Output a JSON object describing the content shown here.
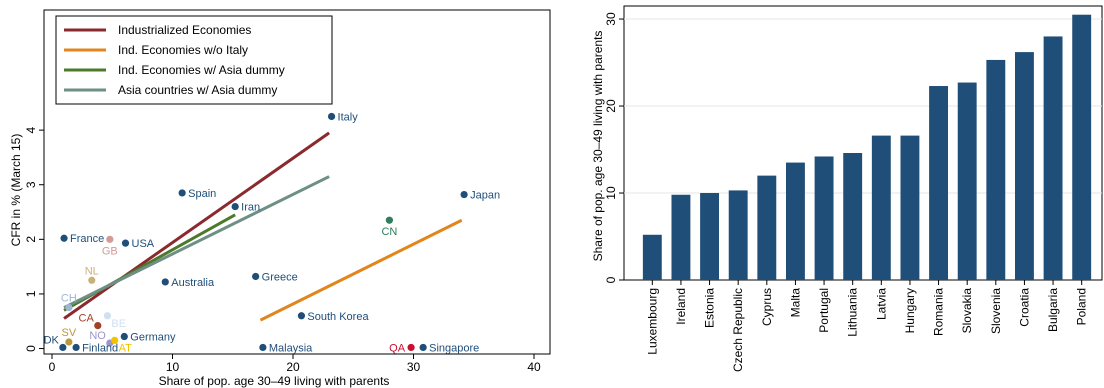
{
  "chart_data": [
    {
      "type": "scatter",
      "xlabel": "Share of pop. age 30–49 living with parents",
      "ylabel": "CFR in % (March 15)",
      "xlim": [
        0,
        40
      ],
      "ylim": [
        -0.1,
        6.2
      ],
      "xticks": [
        0,
        10,
        20,
        30,
        40
      ],
      "yticks": [
        0,
        1,
        2,
        3,
        4
      ],
      "grid": false,
      "legend_position": "top-left",
      "legend": [
        {
          "label": "Industrialized Economies",
          "color": "#8b2a2e"
        },
        {
          "label": "Ind. Economies w/o Italy",
          "color": "#e0861c"
        },
        {
          "label": "Ind. Economies w/ Asia dummy",
          "color": "#4c7a2b"
        },
        {
          "label": "Asia countries w/ Asia dummy",
          "color": "#6e8f85"
        }
      ],
      "fit_lines": [
        {
          "name": "Industrialized Economies",
          "color": "#8b2a2e",
          "x": [
            1,
            23
          ],
          "y": [
            0.55,
            3.95
          ]
        },
        {
          "name": "Ind. Economies w/o Italy",
          "color": "#e0861c",
          "x": [
            17.3,
            34
          ],
          "y": [
            0.52,
            2.35
          ]
        },
        {
          "name": "Ind. Economies w/ Asia dummy",
          "color": "#4c7a2b",
          "x": [
            1,
            15.2
          ],
          "y": [
            0.7,
            2.45
          ]
        },
        {
          "name": "Asia countries w/ Asia dummy",
          "color": "#6e8f85",
          "x": [
            1,
            23
          ],
          "y": [
            0.75,
            3.15
          ]
        }
      ],
      "points": [
        {
          "label": "Italy",
          "x": 23.2,
          "y": 4.25,
          "color": "#1f4e79",
          "label_color": "#1f4e79",
          "label_pos": "right"
        },
        {
          "label": "Japan",
          "x": 34.2,
          "y": 2.82,
          "color": "#1f4e79",
          "label_color": "#1f4e79",
          "label_pos": "right"
        },
        {
          "label": "Spain",
          "x": 10.8,
          "y": 2.85,
          "color": "#1f4e79",
          "label_color": "#1f4e79",
          "label_pos": "right"
        },
        {
          "label": "Iran",
          "x": 15.2,
          "y": 2.6,
          "color": "#1f4e79",
          "label_color": "#1f4e79",
          "label_pos": "right"
        },
        {
          "label": "CN",
          "x": 28.0,
          "y": 2.35,
          "color": "#2e7d5b",
          "label_color": "#2e7d5b",
          "label_pos": "below"
        },
        {
          "label": "France",
          "x": 1.0,
          "y": 2.02,
          "color": "#1f4e79",
          "label_color": "#1f4e79",
          "label_pos": "right"
        },
        {
          "label": "GB",
          "x": 4.8,
          "y": 2.0,
          "color": "#d49a94",
          "label_color": "#d49a94",
          "label_pos": "below"
        },
        {
          "label": "USA",
          "x": 6.1,
          "y": 1.93,
          "color": "#1f4e79",
          "label_color": "#1f4e79",
          "label_pos": "right"
        },
        {
          "label": "NL",
          "x": 3.3,
          "y": 1.25,
          "color": "#c8b27a",
          "label_color": "#c8b27a",
          "label_pos": "above"
        },
        {
          "label": "Australia",
          "x": 9.4,
          "y": 1.22,
          "color": "#1f4e79",
          "label_color": "#1f4e79",
          "label_pos": "right"
        },
        {
          "label": "Greece",
          "x": 16.9,
          "y": 1.32,
          "color": "#1f4e79",
          "label_color": "#1f4e79",
          "label_pos": "right"
        },
        {
          "label": "CH",
          "x": 1.4,
          "y": 0.75,
          "color": "#9fb7d6",
          "label_color": "#9fb7d6",
          "label_pos": "above"
        },
        {
          "label": "BE",
          "x": 4.6,
          "y": 0.6,
          "color": "#cfe0f0",
          "label_color": "#cfe0f0",
          "label_pos": "below-right"
        },
        {
          "label": "South Korea",
          "x": 20.7,
          "y": 0.6,
          "color": "#1f4e79",
          "label_color": "#1f4e79",
          "label_pos": "right"
        },
        {
          "label": "CA",
          "x": 3.8,
          "y": 0.42,
          "color": "#a0422a",
          "label_color": "#a0422a",
          "label_pos": "above-left"
        },
        {
          "label": "SV",
          "x": 1.4,
          "y": 0.12,
          "color": "#b89a3a",
          "label_color": "#b89a3a",
          "label_pos": "above"
        },
        {
          "label": "NO",
          "x": 4.8,
          "y": 0.1,
          "color": "#9e95c7",
          "label_color": "#9e95c7",
          "label_pos": "above-left"
        },
        {
          "label": "AT",
          "x": 5.2,
          "y": 0.15,
          "color": "#f2c200",
          "label_color": "#f2c200",
          "label_pos": "below-right"
        },
        {
          "label": "Germany",
          "x": 6.0,
          "y": 0.22,
          "color": "#1f4e79",
          "label_color": "#1f4e79",
          "label_pos": "right"
        },
        {
          "label": "DK",
          "x": 0.9,
          "y": 0.02,
          "color": "#1f4e79",
          "label_color": "#1f4e79",
          "label_pos": "above-left"
        },
        {
          "label": "Finland",
          "x": 2.0,
          "y": 0.02,
          "color": "#1f4e79",
          "label_color": "#1f4e79",
          "label_pos": "right"
        },
        {
          "label": "Malaysia",
          "x": 17.5,
          "y": 0.02,
          "color": "#1f4e79",
          "label_color": "#1f4e79",
          "label_pos": "right"
        },
        {
          "label": "QA",
          "x": 29.8,
          "y": 0.02,
          "color": "#c8102e",
          "label_color": "#c8102e",
          "label_pos": "left"
        },
        {
          "label": "Singapore",
          "x": 30.8,
          "y": 0.02,
          "color": "#1f4e79",
          "label_color": "#1f4e79",
          "label_pos": "right"
        }
      ]
    },
    {
      "type": "bar",
      "ylabel": "Share of pop. age 30–49 living with parents",
      "xlabel": "",
      "ylim": [
        0,
        31.5
      ],
      "yticks": [
        0,
        10,
        20,
        30
      ],
      "grid": true,
      "bar_color": "#1f4e79",
      "categories": [
        "Luxembourg",
        "Ireland",
        "Estonia",
        "Czech Republic",
        "Cyprus",
        "Malta",
        "Portugal",
        "Lithuania",
        "Latvia",
        "Hungary",
        "Romania",
        "Slovakia",
        "Slovenia",
        "Croatia",
        "Bulgaria",
        "Poland"
      ],
      "values": [
        5.2,
        9.8,
        10.0,
        10.3,
        12.0,
        13.5,
        14.2,
        14.6,
        16.6,
        16.6,
        22.3,
        22.7,
        25.3,
        26.2,
        28.0,
        30.5
      ]
    }
  ]
}
